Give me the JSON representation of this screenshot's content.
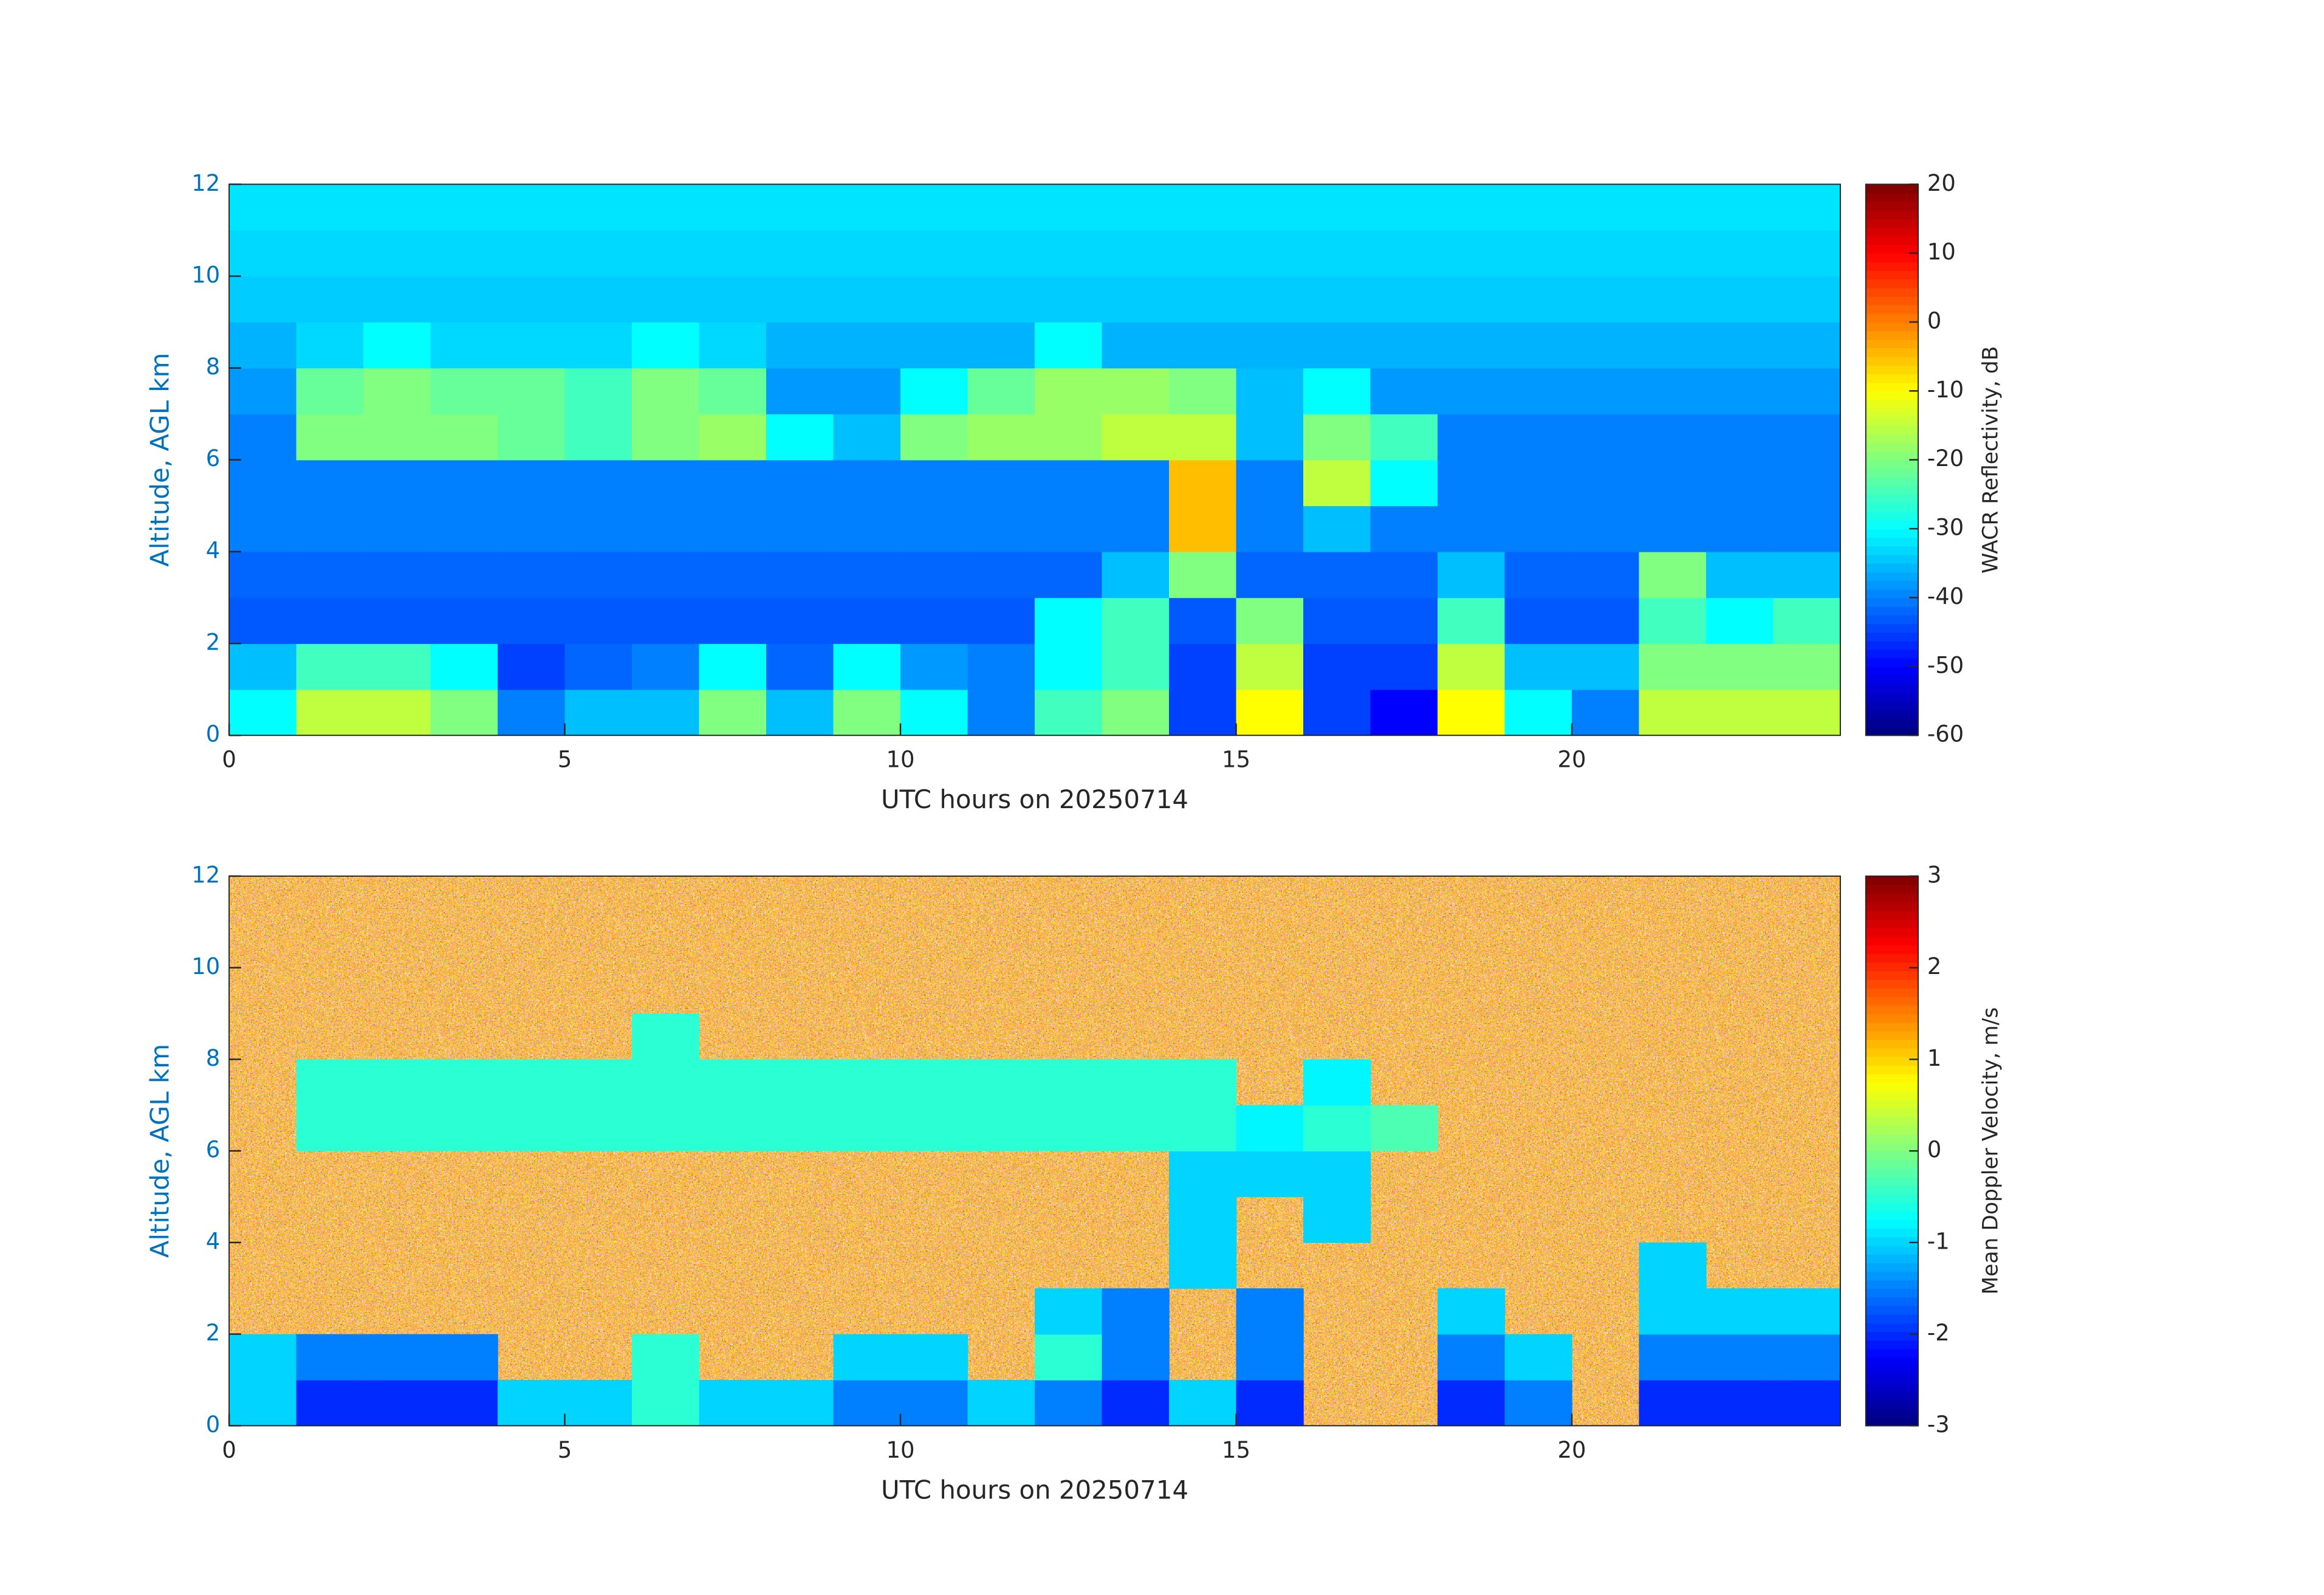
{
  "chart_data": [
    {
      "type": "heatmap",
      "xlabel": "UTC hours on 20250714",
      "ylabel": "Altitude, AGL km",
      "colorbar_label": "WACR Reflectivity, dB",
      "colormap": "jet",
      "x_edges": [
        0,
        1,
        2,
        3,
        4,
        5,
        6,
        7,
        8,
        9,
        10,
        11,
        12,
        13,
        14,
        15,
        16,
        17,
        18,
        19,
        20,
        21,
        22,
        23,
        24
      ],
      "y_edges": [
        0,
        1,
        2,
        3,
        4,
        5,
        6,
        7,
        8,
        9,
        10,
        11,
        12
      ],
      "values": [
        [
          -30,
          -15,
          -15,
          -20,
          -40,
          -35,
          -35,
          -20,
          -35,
          -20,
          -30,
          -40,
          -25,
          -20,
          -45,
          -10,
          -45,
          -50,
          -10,
          -30,
          -40,
          -15,
          -15,
          -15
        ],
        [
          -35,
          -25,
          -25,
          -30,
          -45,
          -42,
          -40,
          -30,
          -42,
          -30,
          -38,
          -40,
          -30,
          -25,
          -45,
          -15,
          -45,
          -45,
          -15,
          -35,
          -35,
          -20,
          -20,
          -20
        ],
        [
          -43,
          -43,
          -43,
          -43,
          -43,
          -43,
          -43,
          -43,
          -43,
          -43,
          -43,
          -43,
          -30,
          -25,
          -43,
          -20,
          -43,
          -43,
          -25,
          -43,
          -43,
          -25,
          -30,
          -25
        ],
        [
          -42,
          -42,
          -42,
          -42,
          -42,
          -42,
          -42,
          -42,
          -42,
          -42,
          -42,
          -42,
          -42,
          -35,
          -20,
          -42,
          -42,
          -42,
          -35,
          -42,
          -42,
          -20,
          -35,
          -35
        ],
        [
          -40,
          -40,
          -40,
          -40,
          -40,
          -40,
          -40,
          -40,
          -40,
          -40,
          -40,
          -40,
          -40,
          -40,
          -5,
          -40,
          -35,
          -40,
          -40,
          -40,
          -40,
          -40,
          -40,
          -40
        ],
        [
          -40,
          -40,
          -40,
          -40,
          -40,
          -40,
          -40,
          -40,
          -40,
          -40,
          -40,
          -40,
          -40,
          -40,
          -5,
          -40,
          -15,
          -30,
          -40,
          -40,
          -40,
          -40,
          -40,
          -40
        ],
        [
          -40,
          -20,
          -20,
          -20,
          -22,
          -25,
          -20,
          -18,
          -30,
          -35,
          -20,
          -18,
          -18,
          -15,
          -15,
          -35,
          -20,
          -25,
          -40,
          -40,
          -40,
          -40,
          -40,
          -40
        ],
        [
          -38,
          -22,
          -20,
          -22,
          -22,
          -25,
          -20,
          -22,
          -38,
          -38,
          -30,
          -22,
          -18,
          -18,
          -20,
          -35,
          -30,
          -38,
          -38,
          -38,
          -38,
          -38,
          -38,
          -38
        ],
        [
          -36,
          -33,
          -30,
          -33,
          -33,
          -33,
          -30,
          -33,
          -36,
          -36,
          -36,
          -36,
          -30,
          -36,
          -36,
          -36,
          -36,
          -36,
          -36,
          -36,
          -36,
          -36,
          -36,
          -36
        ],
        [
          -34,
          -34,
          -34,
          -34,
          -34,
          -34,
          -34,
          -34,
          -34,
          -34,
          -34,
          -34,
          -34,
          -34,
          -34,
          -34,
          -34,
          -34,
          -34,
          -34,
          -34,
          -34,
          -34,
          -34
        ],
        [
          -33,
          -33,
          -33,
          -33,
          -33,
          -33,
          -33,
          -33,
          -33,
          -33,
          -33,
          -33,
          -33,
          -33,
          -33,
          -33,
          -33,
          -33,
          -33,
          -33,
          -33,
          -33,
          -33,
          -33
        ],
        [
          -32,
          -32,
          -32,
          -32,
          -32,
          -32,
          -32,
          -32,
          -32,
          -32,
          -32,
          -32,
          -32,
          -32,
          -32,
          -32,
          -32,
          -32,
          -32,
          -32,
          -32,
          -32,
          -32,
          -32
        ]
      ],
      "xlim": [
        0,
        24
      ],
      "xticks": [
        0,
        5,
        10,
        15,
        20
      ],
      "ylim": [
        0,
        12
      ],
      "yticks": [
        0,
        2,
        4,
        6,
        8,
        10,
        12
      ],
      "clim": [
        -60,
        20
      ],
      "cticks": [
        -60,
        -50,
        -40,
        -30,
        -20,
        -10,
        0,
        10,
        20
      ]
    },
    {
      "type": "heatmap",
      "xlabel": "UTC hours on 20250714",
      "ylabel": "Altitude, AGL km",
      "colorbar_label": "Mean Doppler Velocity, m/s",
      "colormap": "jet",
      "x_edges": [
        0,
        1,
        2,
        3,
        4,
        5,
        6,
        7,
        8,
        9,
        10,
        11,
        12,
        13,
        14,
        15,
        16,
        17,
        18,
        19,
        20,
        21,
        22,
        23,
        24
      ],
      "y_edges": [
        0,
        1,
        2,
        3,
        4,
        5,
        6,
        7,
        8,
        9,
        10,
        11,
        12
      ],
      "values": [
        [
          -1,
          -2,
          -2,
          -2,
          -1,
          -1,
          -0.5,
          -1,
          -1,
          -1.5,
          -1.5,
          -1,
          -1.5,
          -2,
          -1,
          -2,
          null,
          null,
          -2,
          -1.5,
          null,
          -2,
          -2,
          -2
        ],
        [
          -1,
          -1.5,
          -1.5,
          -1.5,
          null,
          null,
          -0.5,
          null,
          null,
          -1,
          -1,
          null,
          -0.5,
          -1.5,
          null,
          -1.5,
          null,
          null,
          -1.5,
          -1,
          null,
          -1.5,
          -1.5,
          -1.5
        ],
        [
          null,
          null,
          null,
          null,
          null,
          null,
          null,
          null,
          null,
          null,
          null,
          null,
          -1,
          -1.5,
          null,
          -1.5,
          null,
          null,
          -1,
          null,
          null,
          -1,
          -1,
          -1
        ],
        [
          null,
          null,
          null,
          null,
          null,
          null,
          null,
          null,
          null,
          null,
          null,
          null,
          null,
          null,
          -1,
          null,
          null,
          null,
          null,
          null,
          null,
          -1,
          null,
          null
        ],
        [
          null,
          null,
          null,
          null,
          null,
          null,
          null,
          null,
          null,
          null,
          null,
          null,
          null,
          null,
          -1,
          null,
          -1,
          null,
          null,
          null,
          null,
          null,
          null,
          null
        ],
        [
          null,
          null,
          null,
          null,
          null,
          null,
          null,
          null,
          null,
          null,
          null,
          null,
          null,
          null,
          -1,
          -1,
          -1,
          null,
          null,
          null,
          null,
          null,
          null,
          null
        ],
        [
          null,
          -0.5,
          -0.5,
          -0.5,
          -0.5,
          -0.5,
          -0.5,
          -0.5,
          -0.5,
          -0.5,
          -0.5,
          -0.5,
          -0.5,
          -0.5,
          -0.5,
          -0.8,
          -0.5,
          -0.3,
          null,
          null,
          null,
          null,
          null,
          null
        ],
        [
          null,
          -0.5,
          -0.5,
          -0.5,
          -0.5,
          -0.5,
          -0.5,
          -0.5,
          -0.5,
          -0.5,
          -0.5,
          -0.5,
          -0.5,
          -0.5,
          -0.5,
          null,
          -0.8,
          null,
          null,
          null,
          null,
          null,
          null,
          null
        ],
        [
          null,
          null,
          null,
          null,
          null,
          null,
          -0.5,
          null,
          null,
          null,
          null,
          null,
          null,
          null,
          null,
          null,
          null,
          null,
          null,
          null,
          null,
          null,
          null,
          null
        ],
        [
          null,
          null,
          null,
          null,
          null,
          null,
          null,
          null,
          null,
          null,
          null,
          null,
          null,
          null,
          null,
          null,
          null,
          null,
          null,
          null,
          null,
          null,
          null,
          null
        ],
        [
          null,
          null,
          null,
          null,
          null,
          null,
          null,
          null,
          null,
          null,
          null,
          null,
          null,
          null,
          null,
          null,
          null,
          null,
          null,
          null,
          null,
          null,
          null,
          null
        ],
        [
          null,
          null,
          null,
          null,
          null,
          null,
          null,
          null,
          null,
          null,
          null,
          null,
          null,
          null,
          null,
          null,
          null,
          null,
          null,
          null,
          null,
          null,
          null,
          null
        ]
      ],
      "xlim": [
        0,
        24
      ],
      "xticks": [
        0,
        5,
        10,
        15,
        20
      ],
      "ylim": [
        0,
        12
      ],
      "yticks": [
        0,
        2,
        4,
        6,
        8,
        10,
        12
      ],
      "clim": [
        -3,
        3
      ],
      "cticks": [
        -3,
        -2,
        -1,
        0,
        1,
        2,
        3
      ]
    }
  ]
}
